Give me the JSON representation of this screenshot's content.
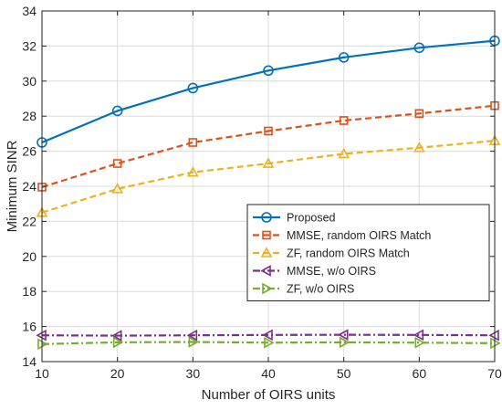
{
  "chart_data": {
    "type": "line",
    "title": "",
    "xlabel": "Number of OIRS units",
    "ylabel": "Minimum SINR",
    "xlim": [
      10,
      70
    ],
    "ylim": [
      14,
      34
    ],
    "xticks": [
      10,
      20,
      30,
      40,
      50,
      60,
      70
    ],
    "yticks": [
      14,
      16,
      18,
      20,
      22,
      24,
      26,
      28,
      30,
      32,
      34
    ],
    "grid": true,
    "legend_position": "center-right",
    "x": [
      10,
      20,
      30,
      40,
      50,
      60,
      70
    ],
    "series": [
      {
        "name": "Proposed",
        "values": [
          26.5,
          28.3,
          29.6,
          30.6,
          31.35,
          31.9,
          32.3
        ],
        "color": "#0072BD",
        "marker": "circle",
        "dash": "solid"
      },
      {
        "name": "MMSE, random OIRS Match",
        "values": [
          23.95,
          25.3,
          26.5,
          27.15,
          27.75,
          28.15,
          28.6
        ],
        "color": "#D95319",
        "marker": "square",
        "dash": "dashed"
      },
      {
        "name": "ZF, random OIRS Match",
        "values": [
          22.5,
          23.85,
          24.8,
          25.3,
          25.85,
          26.2,
          26.6
        ],
        "color": "#EDB120",
        "marker": "triangle-up",
        "dash": "dashed"
      },
      {
        "name": "MMSE, w/o OIRS",
        "values": [
          15.5,
          15.48,
          15.5,
          15.52,
          15.53,
          15.52,
          15.5
        ],
        "color": "#7E2F8E",
        "marker": "triangle-left",
        "dash": "dashdot"
      },
      {
        "name": "ZF, w/o OIRS",
        "values": [
          15.0,
          15.1,
          15.12,
          15.08,
          15.1,
          15.08,
          15.05
        ],
        "color": "#77AC30",
        "marker": "triangle-right",
        "dash": "dashdot"
      }
    ]
  }
}
